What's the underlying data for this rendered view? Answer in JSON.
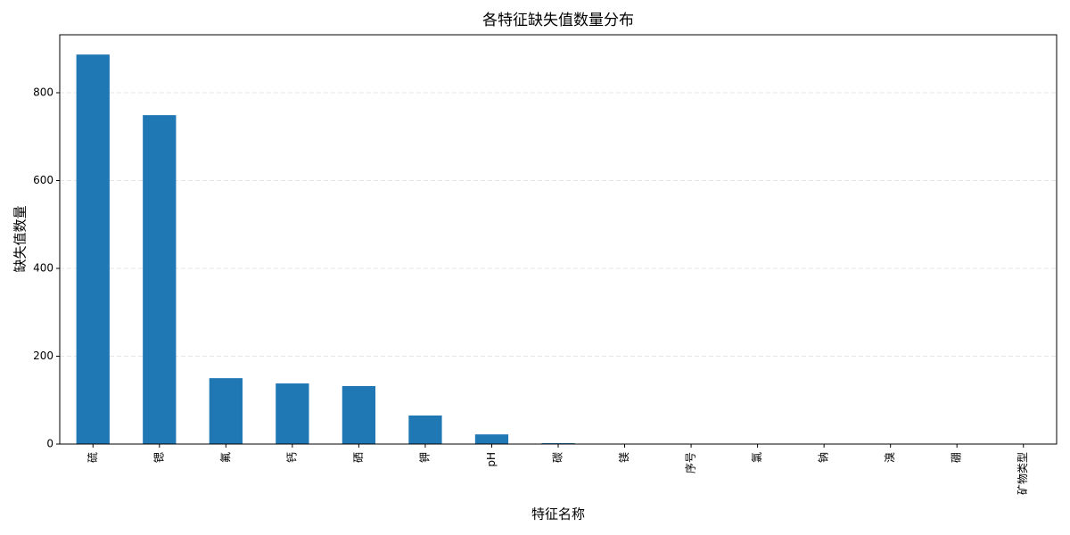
{
  "chart_data": {
    "type": "bar",
    "title": "各特征缺失值数量分布",
    "x_label": "特征名称",
    "y_label": "缺失值数量",
    "categories": [
      "硫",
      "锶",
      "氟",
      "钙",
      "硒",
      "钾",
      "pH",
      "碳",
      "镁",
      "序号",
      "氯",
      "钠",
      "溴",
      "硼",
      "矿物类型"
    ],
    "values": [
      887,
      749,
      150,
      138,
      132,
      65,
      22,
      2,
      1,
      0,
      0,
      0,
      0,
      0,
      0
    ],
    "color": "#1f77b4",
    "ylim": [
      0,
      932
    ],
    "yticks": [
      0,
      200,
      400,
      600,
      800
    ],
    "grid": true
  }
}
